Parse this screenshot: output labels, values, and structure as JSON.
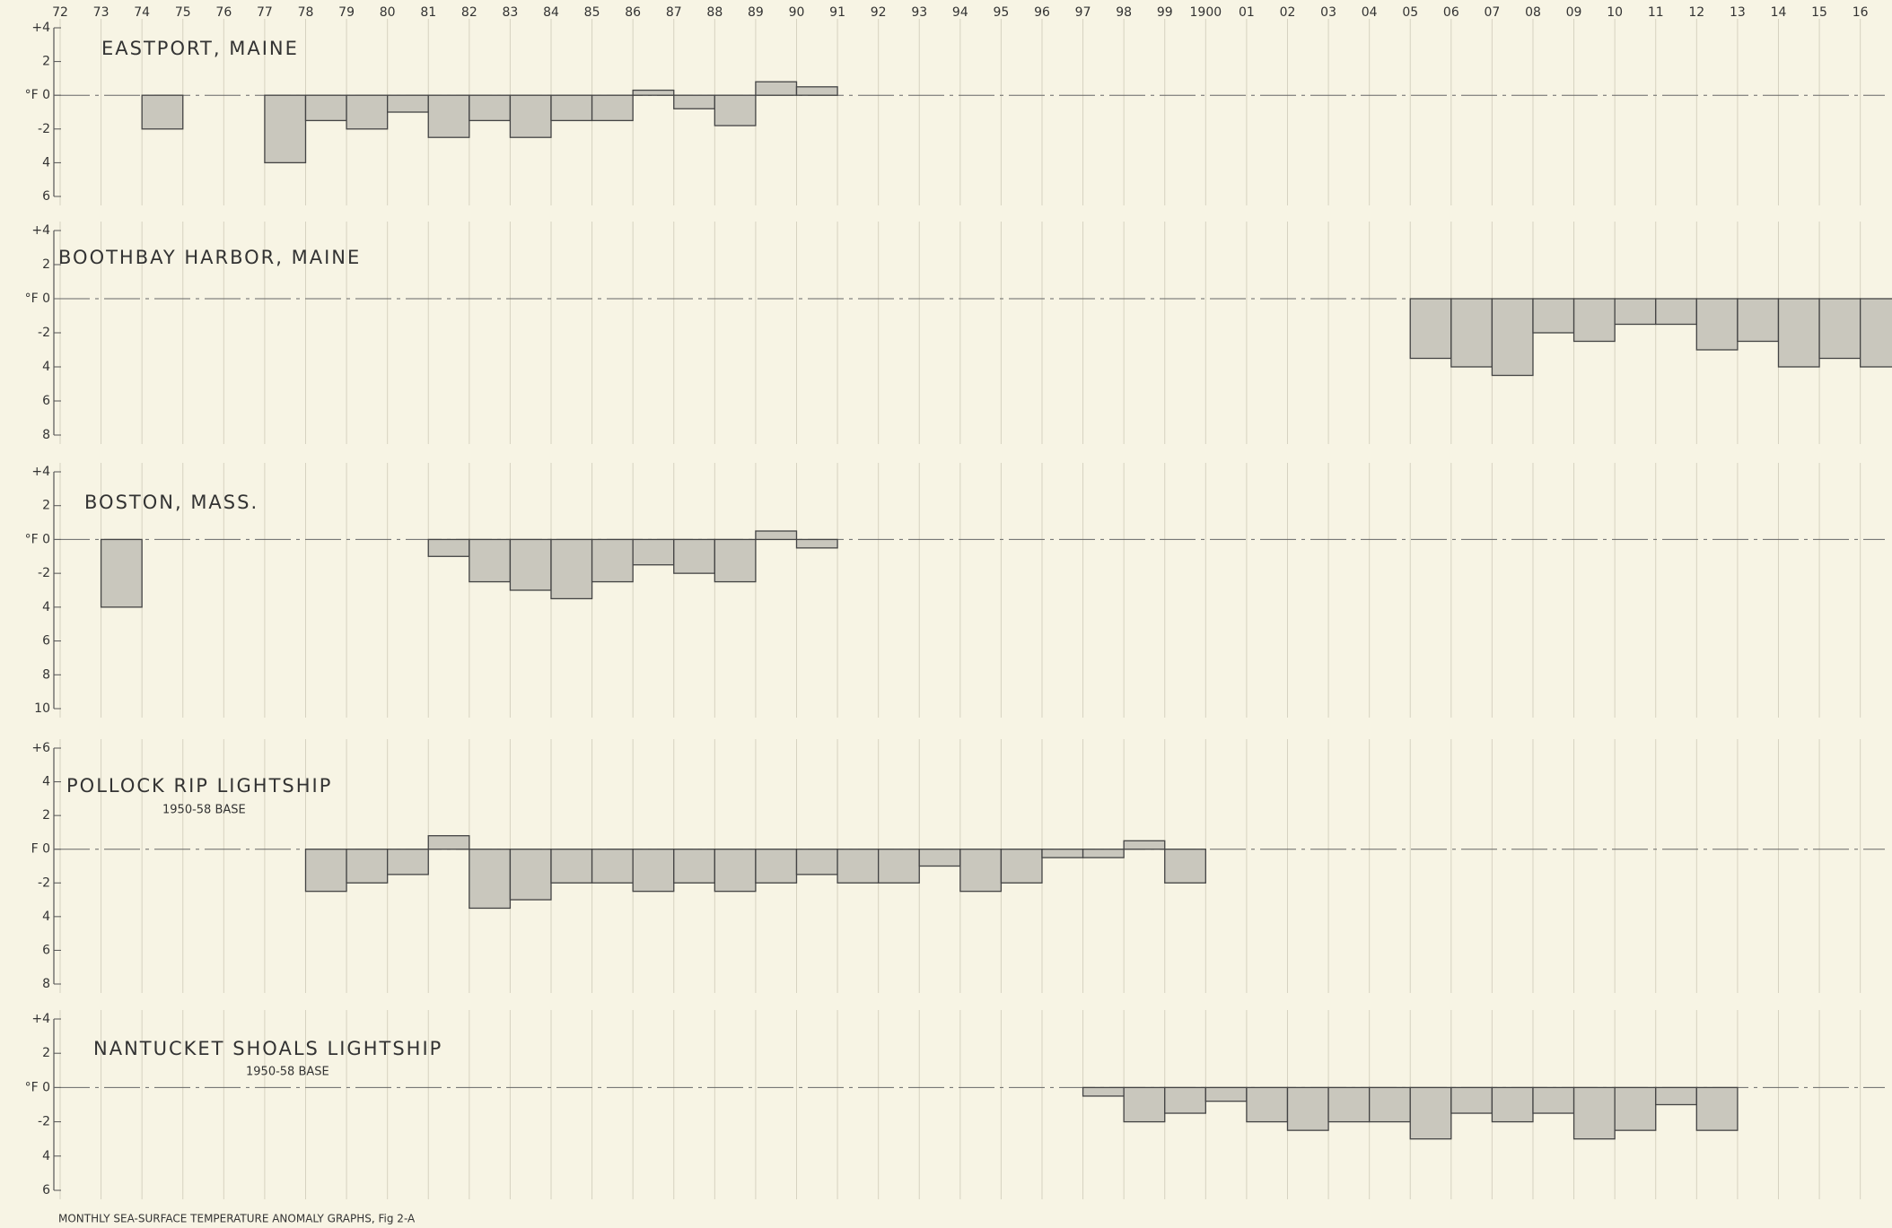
{
  "caption": "MONTHLY  SEA-SURFACE  TEMPERATURE  ANOMALY  GRAPHS, Fig 2-A",
  "chart_data": [
    {
      "type": "bar",
      "title": "EASTPORT, MAINE",
      "color": "#c9c7bd",
      "xlim": [
        1872,
        1916.6
      ],
      "ylim": [
        -6,
        4
      ],
      "xticks": [
        {
          "value": 1872,
          "label": "72"
        },
        {
          "value": 1873,
          "label": "73"
        },
        {
          "value": 1874,
          "label": "74"
        },
        {
          "value": 1875,
          "label": "75"
        },
        {
          "value": 1876,
          "label": "76"
        },
        {
          "value": 1877,
          "label": "77"
        },
        {
          "value": 1878,
          "label": "78"
        },
        {
          "value": 1879,
          "label": "79"
        },
        {
          "value": 1880,
          "label": "80"
        },
        {
          "value": 1881,
          "label": "81"
        },
        {
          "value": 1882,
          "label": "82"
        },
        {
          "value": 1883,
          "label": "83"
        },
        {
          "value": 1884,
          "label": "84"
        },
        {
          "value": 1885,
          "label": "85"
        },
        {
          "value": 1886,
          "label": "86"
        },
        {
          "value": 1887,
          "label": "87"
        },
        {
          "value": 1888,
          "label": "88"
        },
        {
          "value": 1889,
          "label": "89"
        },
        {
          "value": 1890,
          "label": "90"
        },
        {
          "value": 1891,
          "label": "91"
        },
        {
          "value": 1892,
          "label": "92"
        },
        {
          "value": 1893,
          "label": "93"
        },
        {
          "value": 1894,
          "label": "94"
        },
        {
          "value": 1895,
          "label": "95"
        },
        {
          "value": 1896,
          "label": "96"
        },
        {
          "value": 1897,
          "label": "97"
        },
        {
          "value": 1898,
          "label": "98"
        },
        {
          "value": 1899,
          "label": "99"
        },
        1900,
        {
          "value": 1901,
          "label": "01"
        },
        {
          "value": 1902,
          "label": "02"
        },
        {
          "value": 1903,
          "label": "03"
        },
        {
          "value": 1904,
          "label": "04"
        },
        {
          "value": 1905,
          "label": "05"
        },
        {
          "value": 1906,
          "label": "06"
        },
        {
          "value": 1907,
          "label": "07"
        },
        {
          "value": 1908,
          "label": "08"
        },
        {
          "value": 1909,
          "label": "09"
        },
        {
          "value": 1910,
          "label": "10"
        },
        {
          "value": 1911,
          "label": "11"
        },
        {
          "value": 1912,
          "label": "12"
        },
        {
          "value": 1913,
          "label": "13"
        },
        {
          "value": 1914,
          "label": "14"
        },
        {
          "value": 1915,
          "label": "15"
        },
        {
          "value": 1916,
          "label": "16"
        }
      ],
      "yticks": [
        {
          "value": 4,
          "label": "+4"
        },
        2,
        {
          "value": 0,
          "label": "°F 0"
        },
        -2,
        {
          "value": -4,
          "label": "4"
        },
        {
          "value": -6,
          "label": "6"
        }
      ],
      "x": [
        1874,
        1877,
        1878,
        1879,
        1880,
        1881,
        1882,
        1883,
        1884,
        1885,
        1886,
        1887,
        1888,
        1889,
        1890
      ],
      "values": [
        -2,
        -4,
        -1.5,
        -2,
        -1,
        -2.5,
        -1.5,
        -2.5,
        -1.5,
        -1.5,
        0.3,
        -0.8,
        -1.8,
        0.8,
        0.5
      ]
    },
    {
      "type": "bar",
      "title": "BOOTHBAY HARBOR, MAINE",
      "color": "#c9c7bd",
      "xlim": [
        1872,
        1916.6
      ],
      "ylim": [
        -8,
        4
      ],
      "yticks": [
        {
          "value": 4,
          "label": "+4"
        },
        2,
        {
          "value": 0,
          "label": "°F 0"
        },
        -2,
        {
          "value": -4,
          "label": "4"
        },
        {
          "value": -6,
          "label": "6"
        },
        {
          "value": -8,
          "label": "8"
        }
      ],
      "x": [
        1905,
        1906,
        1907,
        1908,
        1909,
        1910,
        1911,
        1912,
        1913,
        1914,
        1915,
        1916
      ],
      "values": [
        -3.5,
        -4,
        -4.5,
        -2,
        -2.5,
        -1.5,
        -1.5,
        -3,
        -2.5,
        -4,
        -3.5,
        -4
      ]
    },
    {
      "type": "bar",
      "title": "BOSTON, MASS.",
      "color": "#c9c7bd",
      "xlim": [
        1872,
        1916.6
      ],
      "ylim": [
        -10,
        4
      ],
      "yticks": [
        {
          "value": 4,
          "label": "+4"
        },
        2,
        {
          "value": 0,
          "label": "°F 0"
        },
        -2,
        {
          "value": -4,
          "label": "4"
        },
        {
          "value": -6,
          "label": "6"
        },
        {
          "value": -8,
          "label": "8"
        },
        {
          "value": -10,
          "label": "10"
        }
      ],
      "x": [
        1873,
        1881,
        1882,
        1883,
        1884,
        1885,
        1886,
        1887,
        1888,
        1889,
        1890
      ],
      "values": [
        -4,
        -1,
        -2.5,
        -3,
        -3.5,
        -2.5,
        -1.5,
        -2,
        -2.5,
        0.5,
        -0.5
      ]
    },
    {
      "type": "bar",
      "title": "POLLOCK RIP LIGHTSHIP",
      "subtitle": "1950-58 BASE",
      "color": "#c9c7bd",
      "xlim": [
        1872,
        1916.6
      ],
      "ylim": [
        -8,
        6
      ],
      "yticks": [
        {
          "value": 6,
          "label": "+6"
        },
        4,
        2,
        {
          "value": 0,
          "label": "F 0"
        },
        -2,
        {
          "value": -4,
          "label": "4"
        },
        {
          "value": -6,
          "label": "6"
        },
        {
          "value": -8,
          "label": "8"
        }
      ],
      "x": [
        1878,
        1879,
        1880,
        1881,
        1882,
        1883,
        1884,
        1885,
        1886,
        1887,
        1888,
        1889,
        1890,
        1891,
        1892,
        1893,
        1894,
        1895,
        1896,
        1897,
        1898,
        1899
      ],
      "values": [
        -2.5,
        -2,
        -1.5,
        0.8,
        -3.5,
        -3,
        -2,
        -2,
        -2.5,
        -2,
        -2.5,
        -2,
        -1.5,
        -2,
        -2,
        -1,
        -2.5,
        -2,
        -0.5,
        -0.5,
        0.5,
        -2
      ]
    },
    {
      "type": "bar",
      "title": "NANTUCKET SHOALS LIGHTSHIP",
      "subtitle": "1950-58 BASE",
      "color": "#c9c7bd",
      "xlim": [
        1872,
        1916.6
      ],
      "ylim": [
        -6,
        4
      ],
      "yticks": [
        {
          "value": 4,
          "label": "+4"
        },
        2,
        {
          "value": 0,
          "label": "°F 0"
        },
        -2,
        {
          "value": -4,
          "label": "4"
        },
        {
          "value": -6,
          "label": "6"
        }
      ],
      "x": [
        1897,
        1898,
        1899,
        1900,
        1901,
        1902,
        1903,
        1904,
        1905,
        1906,
        1907,
        1908,
        1909,
        1910,
        1911,
        1912
      ],
      "values": [
        -0.5,
        -2,
        -1.5,
        -0.8,
        -2,
        -2.5,
        -2,
        -2,
        -3,
        -1.5,
        -2,
        -1.5,
        -3,
        -2.5,
        -1,
        -2.5
      ]
    }
  ]
}
